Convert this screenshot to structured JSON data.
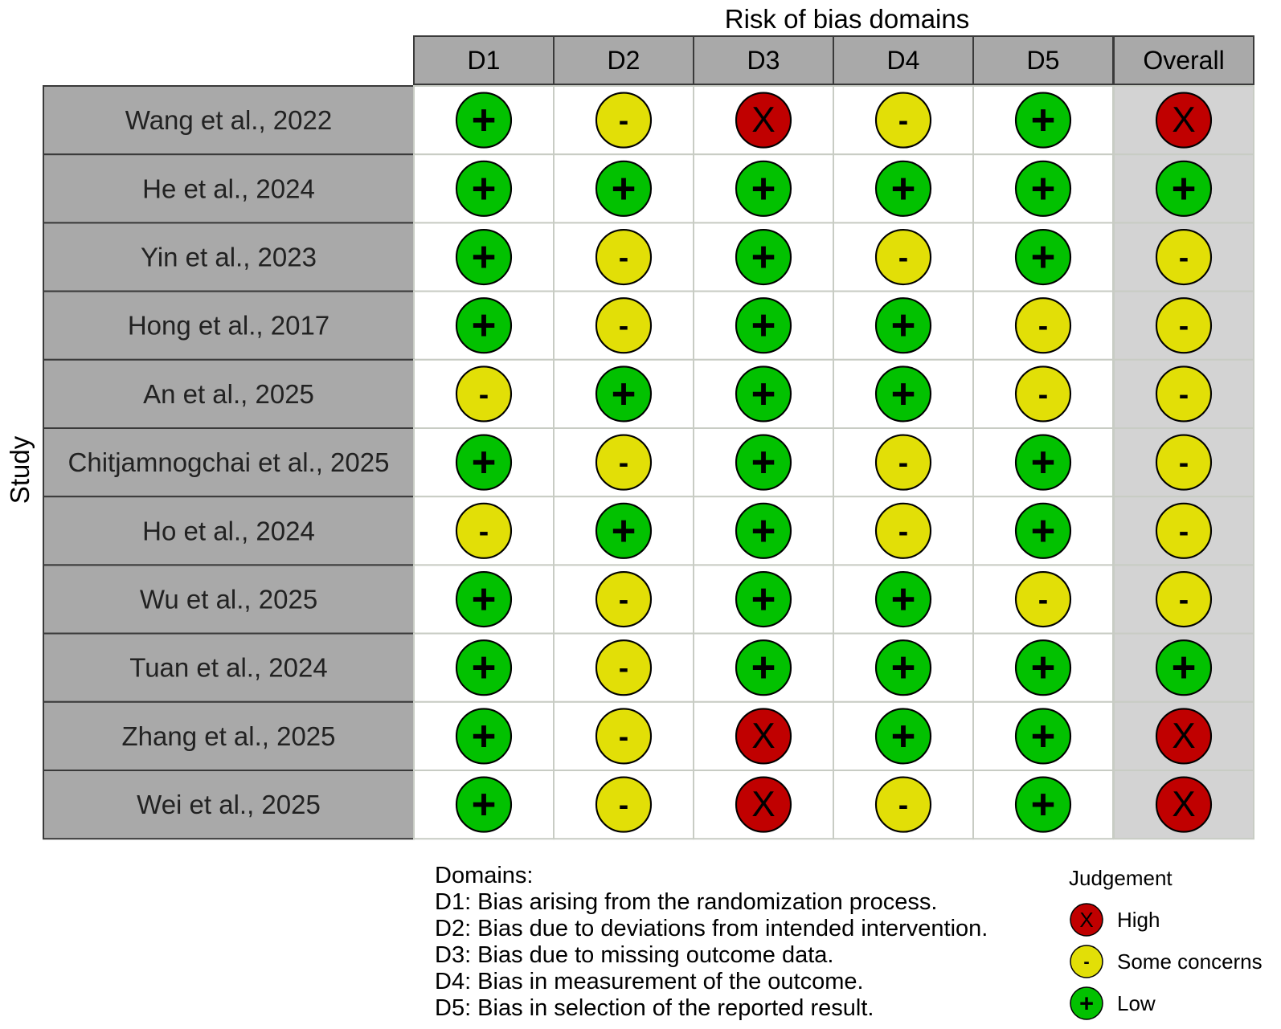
{
  "chart_data": {
    "type": "table",
    "title": "Risk of bias domains",
    "row_axis_label": "Study",
    "columns": [
      "D1",
      "D2",
      "D3",
      "D4",
      "D5",
      "Overall"
    ],
    "rows": [
      {
        "study": "Wang et al., 2022",
        "judgements": [
          "Low",
          "Some concerns",
          "High",
          "Some concerns",
          "Low",
          "High"
        ]
      },
      {
        "study": "He et al., 2024",
        "judgements": [
          "Low",
          "Low",
          "Low",
          "Low",
          "Low",
          "Low"
        ]
      },
      {
        "study": "Yin et al., 2023",
        "judgements": [
          "Low",
          "Some concerns",
          "Low",
          "Some concerns",
          "Low",
          "Some concerns"
        ]
      },
      {
        "study": "Hong et al., 2017",
        "judgements": [
          "Low",
          "Some concerns",
          "Low",
          "Low",
          "Some concerns",
          "Some concerns"
        ]
      },
      {
        "study": "An et al., 2025",
        "judgements": [
          "Some concerns",
          "Low",
          "Low",
          "Low",
          "Some concerns",
          "Some concerns"
        ]
      },
      {
        "study": "Chitjamnogchai et al., 2025",
        "judgements": [
          "Low",
          "Some concerns",
          "Low",
          "Some concerns",
          "Low",
          "Some concerns"
        ]
      },
      {
        "study": "Ho et al., 2024",
        "judgements": [
          "Some concerns",
          "Low",
          "Low",
          "Some concerns",
          "Low",
          "Some concerns"
        ]
      },
      {
        "study": "Wu et al., 2025",
        "judgements": [
          "Low",
          "Some concerns",
          "Low",
          "Low",
          "Some concerns",
          "Some concerns"
        ]
      },
      {
        "study": "Tuan et al., 2024",
        "judgements": [
          "Low",
          "Some concerns",
          "Low",
          "Low",
          "Low",
          "Low"
        ]
      },
      {
        "study": "Zhang et al., 2025",
        "judgements": [
          "Low",
          "Some concerns",
          "High",
          "Low",
          "Low",
          "High"
        ]
      },
      {
        "study": "Wei et al., 2025",
        "judgements": [
          "Low",
          "Some concerns",
          "High",
          "Some concerns",
          "Low",
          "High"
        ]
      }
    ],
    "judgement_symbols": {
      "High": "X",
      "Some concerns": "-",
      "Low": "+"
    },
    "judgement_colors": {
      "High": "#c00000",
      "Some concerns": "#e2df07",
      "Low": "#02c100"
    }
  },
  "domains_legend": {
    "heading": "Domains:",
    "items": [
      "D1: Bias arising from the randomization process.",
      "D2: Bias due to deviations from intended intervention.",
      "D3: Bias due to missing outcome data.",
      "D4: Bias in measurement of the outcome.",
      "D5: Bias in selection of the reported result."
    ]
  },
  "judgement_legend": {
    "title": "Judgement",
    "items": [
      {
        "label": "High",
        "level": "High"
      },
      {
        "label": "Some concerns",
        "level": "Some concerns"
      },
      {
        "label": "Low",
        "level": "Low"
      }
    ]
  },
  "colors": {
    "header_fill": "#a9a9a9",
    "study_fill": "#a9a9a9",
    "overall_fill": "#d3d3d3",
    "cell_border": "#c8ccc4"
  }
}
